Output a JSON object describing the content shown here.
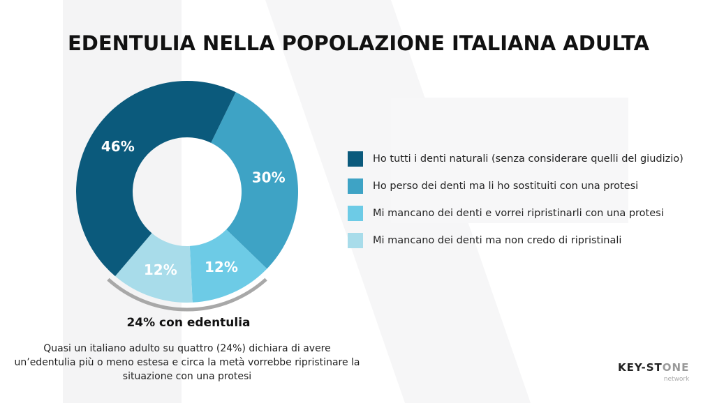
{
  "title": "EDENTULIA NELLA POPOLAZIONE ITALIANA ADULTA",
  "chart_data": {
    "type": "pie",
    "donut": true,
    "series": [
      {
        "name": "Ho tutti i denti naturali (senza considerare quelli del giudizio)",
        "value": 46,
        "label": "46%",
        "color": "#0b5a7c"
      },
      {
        "name": "Ho perso dei denti ma li ho sostituiti con una protesi",
        "value": 30,
        "label": "30%",
        "color": "#3ea3c5"
      },
      {
        "name": "Mi mancano dei denti e vorrei ripristinarli con una protesi",
        "value": 12,
        "label": "12%",
        "color": "#6dcbe6"
      },
      {
        "name": "Mi mancano dei denti ma non credo di ripristinali",
        "value": 12,
        "label": "12%",
        "color": "#a8dcea"
      }
    ],
    "legend_position": "right",
    "annotation": "24% con edentulia"
  },
  "description": "Quasi un italiano adulto su quattro (24%) dichiara di avere un’edentulia più o meno estesa e circa la metà vorrebbe ripristinare la situazione con una protesi",
  "logo": {
    "text_main": "KEY-ST",
    "text_accent": "ONE",
    "text_sub": "network"
  }
}
